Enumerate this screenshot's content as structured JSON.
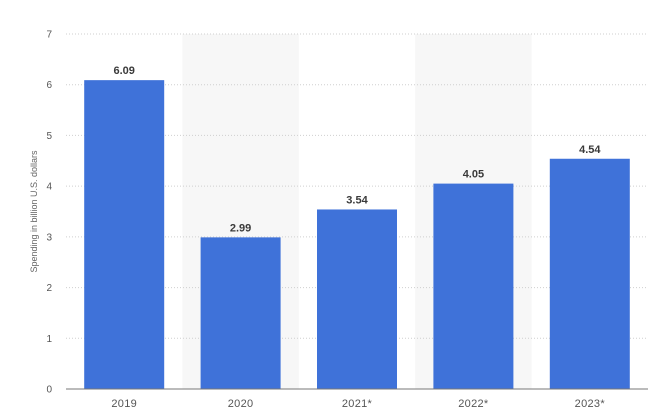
{
  "chart_data": {
    "type": "bar",
    "categories": [
      "2019",
      "2020",
      "2021*",
      "2022*",
      "2023*"
    ],
    "values": [
      6.09,
      2.99,
      3.54,
      4.05,
      4.54
    ],
    "value_labels": [
      "6.09",
      "2.99",
      "3.54",
      "4.05",
      "4.54"
    ],
    "title": "",
    "xlabel": "",
    "ylabel": "Spending in billion U.S. dollars",
    "ylim": [
      0,
      7
    ],
    "yticks": [
      0,
      1,
      2,
      3,
      4,
      5,
      6,
      7
    ],
    "grid": true,
    "legend": "none",
    "bar_color": "#3f72d9",
    "band_color": "#f7f7f7",
    "shaded_band_indices": [
      1,
      3
    ]
  }
}
